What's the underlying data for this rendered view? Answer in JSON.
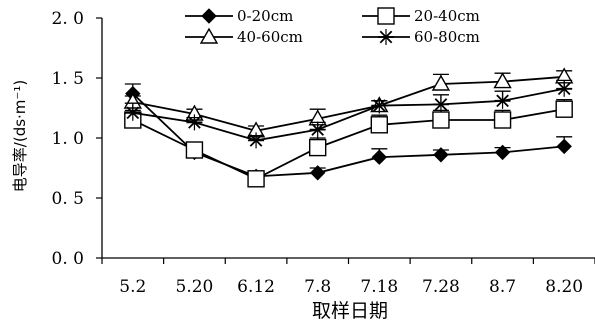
{
  "chart_data": {
    "type": "line",
    "categories": [
      "5.2",
      "5.20",
      "6.12",
      "7.8",
      "7.18",
      "7.28",
      "8.7",
      "8.20"
    ],
    "xlabel": "取样日期",
    "ylabel": "电导率/(ds·m⁻¹)",
    "ylim": [
      0.0,
      2.0
    ],
    "yticks": [
      "0. 0",
      "0. 5",
      "1. 0",
      "1. 5",
      "2. 0"
    ],
    "grid": false,
    "legend_position": "top",
    "series": [
      {
        "name": "0-20cm",
        "marker": "diamond",
        "values": [
          1.37,
          0.88,
          0.68,
          0.71,
          0.84,
          0.86,
          0.88,
          0.93
        ],
        "errors": [
          0.08,
          0.04,
          0.04,
          0.04,
          0.07,
          0.04,
          0.04,
          0.08
        ]
      },
      {
        "name": "20-40cm",
        "marker": "square",
        "values": [
          1.15,
          0.9,
          0.66,
          0.92,
          1.11,
          1.15,
          1.15,
          1.24
        ],
        "errors": [
          0.08,
          0.04,
          0.04,
          0.08,
          0.08,
          0.08,
          0.08,
          0.08
        ]
      },
      {
        "name": "40-60cm",
        "marker": "triangle",
        "values": [
          1.3,
          1.2,
          1.06,
          1.16,
          1.27,
          1.45,
          1.47,
          1.51
        ],
        "errors": [
          0.05,
          0.04,
          0.04,
          0.08,
          0.04,
          0.08,
          0.07,
          0.05
        ]
      },
      {
        "name": "60-80cm",
        "marker": "star",
        "values": [
          1.21,
          1.13,
          0.98,
          1.07,
          1.27,
          1.28,
          1.31,
          1.41
        ],
        "errors": [
          0.08,
          0.04,
          0.04,
          0.06,
          0.04,
          0.08,
          0.08,
          0.07
        ]
      }
    ],
    "colors": {
      "line": "#000000",
      "open_fill": "#ffffff",
      "solid_fill": "#000000"
    }
  }
}
